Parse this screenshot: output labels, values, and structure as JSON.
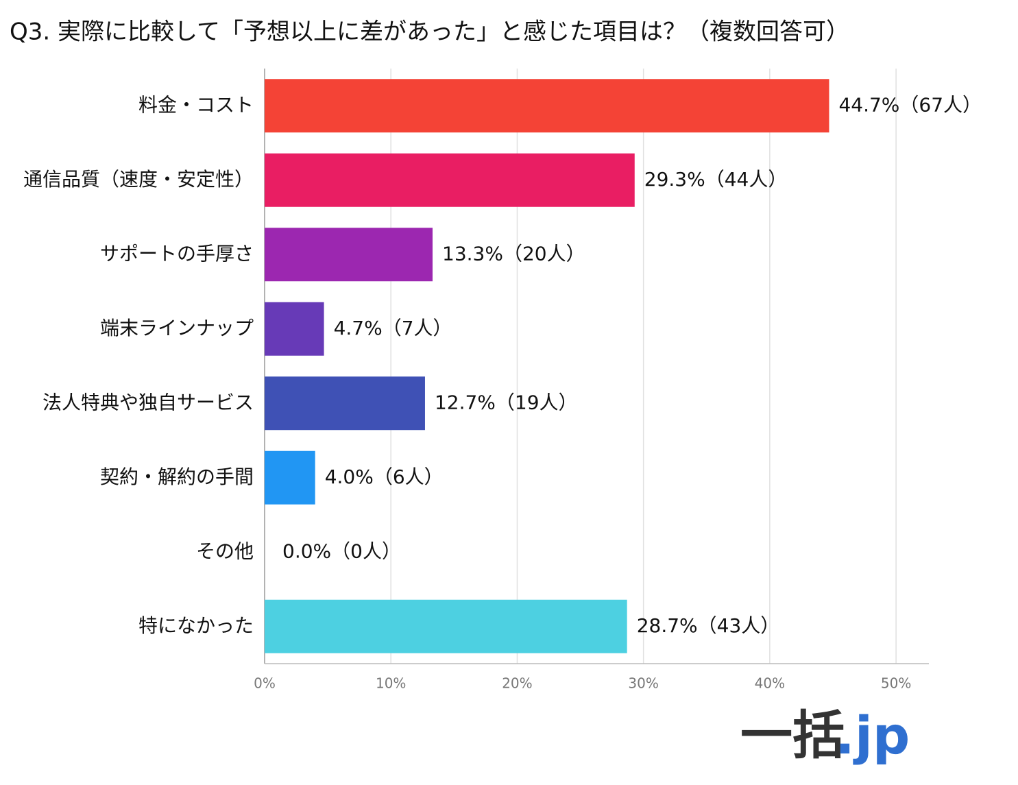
{
  "chart_data": {
    "type": "bar",
    "orientation": "horizontal",
    "title": "Q3. 実際に比較して「予想以上に差があった」と感じた項目は？（複数回答可）",
    "categories": [
      "料金・コスト",
      "通信品質（速度・安定性）",
      "サポートの手厚さ",
      "端末ラインナップ",
      "法人特典や独自サービス",
      "契約・解約の手間",
      "その他",
      "特になかった"
    ],
    "values": [
      44.7,
      29.3,
      13.3,
      4.7,
      12.7,
      4.0,
      0.0,
      28.7
    ],
    "value_labels": [
      "44.7%（67人）",
      "29.3%（44人）",
      "13.3%（20人）",
      "4.7%（7人）",
      "12.7%（19人）",
      "4.0%（6人）",
      "0.0%（0人）",
      "28.7%（43人）"
    ],
    "colors": [
      "#f44336",
      "#e91e63",
      "#9c27b0",
      "#673ab7",
      "#3f51b5",
      "#2196f3",
      "#03a9f4",
      "#4dd0e1"
    ],
    "xlim": [
      0,
      52.6
    ],
    "xticks": [
      {
        "value": 0,
        "label": "0%"
      },
      {
        "value": 10,
        "label": "10%"
      },
      {
        "value": 20,
        "label": "20%"
      },
      {
        "value": 30,
        "label": "30%"
      },
      {
        "value": 40,
        "label": "40%"
      },
      {
        "value": 50,
        "label": "50%"
      }
    ],
    "grid": true
  },
  "logo": {
    "main": "一括",
    "suffix": ".jp"
  }
}
